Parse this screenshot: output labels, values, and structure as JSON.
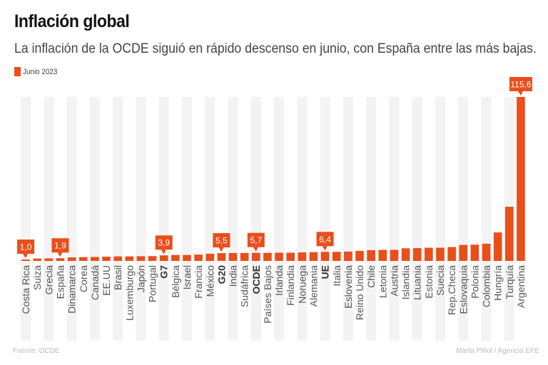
{
  "header": {
    "title": "Inflación global",
    "subtitle": "La inflación de la OCDE siguió en rápido descenso en junio, con España entre las más bajas."
  },
  "footer": {
    "source": "Fuente: OCDE",
    "credit": "Marta Piñol / Agencia EFE"
  },
  "colors": {
    "bar": "#e94e1b",
    "stripe": "#f3f3f3"
  },
  "chart_data": {
    "type": "bar",
    "title": "Inflación global",
    "legend": [
      "Junio 2023"
    ],
    "legend_position": "top-left",
    "xlabel": "",
    "ylabel": "",
    "ylim": [
      0,
      115.6
    ],
    "grid": false,
    "categories": [
      "Costa Rica",
      "Suiza",
      "Grecia",
      "España",
      "Dinamarca",
      "Corea",
      "Canadá",
      "EE.UU",
      "Brasil",
      "Luxemburgo",
      "Japón",
      "Portugal",
      "G7",
      "Bélgica",
      "Israel",
      "Francia",
      "México",
      "G20",
      "India",
      "Sudáfrica",
      "OCDE",
      "Países Bajos",
      "Irlanda",
      "Finlandia",
      "Noruega",
      "Alemania",
      "UE",
      "Italia",
      "Eslovenia",
      "Reino Unido",
      "Chile",
      "Letonia",
      "Austria",
      "Islandia",
      "Lituania",
      "Estonia",
      "Suecia",
      "Rep.Checa",
      "Eslovaquia",
      "Polonia",
      "Colombia",
      "Hungría",
      "Turquía",
      "Argentina"
    ],
    "bold_categories": [
      "G7",
      "G20",
      "OCDE",
      "UE"
    ],
    "series": [
      {
        "name": "Junio 2023",
        "values": [
          1.0,
          1.7,
          1.8,
          1.9,
          2.5,
          2.7,
          2.8,
          3.0,
          3.2,
          3.2,
          3.3,
          3.4,
          3.9,
          4.2,
          4.2,
          4.5,
          5.1,
          5.5,
          5.6,
          5.6,
          5.7,
          5.7,
          5.8,
          5.8,
          6.0,
          6.2,
          6.4,
          6.4,
          6.6,
          7.1,
          7.6,
          7.8,
          7.8,
          8.9,
          9.0,
          9.3,
          9.3,
          9.8,
          11.3,
          11.5,
          12.1,
          20.1,
          38.2,
          115.6
        ]
      }
    ],
    "data_labels": [
      {
        "category": "Costa Rica",
        "label": "1,0"
      },
      {
        "category": "España",
        "label": "1,9"
      },
      {
        "category": "G7",
        "label": "3,9"
      },
      {
        "category": "G20",
        "label": "5,5"
      },
      {
        "category": "OCDE",
        "label": "5,7"
      },
      {
        "category": "UE",
        "label": "6,4"
      },
      {
        "category": "Argentina",
        "label": "115,6"
      }
    ]
  }
}
